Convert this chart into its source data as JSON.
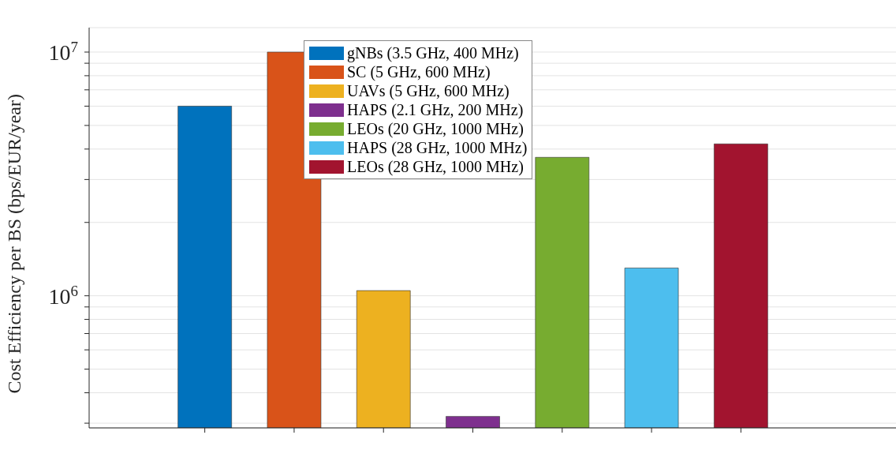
{
  "chart_data": {
    "type": "bar",
    "ylabel": "Cost Efficiency per BS (bps/EUR/year)",
    "categories": [
      null,
      null,
      null,
      null,
      null,
      null,
      null
    ],
    "series": [
      {
        "name": "gNBs (3.5 GHz, 400 MHz)",
        "color": "#0072bd",
        "values": [
          6000000,
          null,
          null,
          null,
          null,
          null,
          null
        ]
      },
      {
        "name": "SC (5 GHz, 600 MHz)",
        "color": "#d95319",
        "values": [
          null,
          10000000,
          null,
          null,
          null,
          null,
          null
        ]
      },
      {
        "name": "UAVs (5 GHz, 600 MHz)",
        "color": "#edb120",
        "values": [
          null,
          null,
          1050000,
          null,
          null,
          null,
          null
        ]
      },
      {
        "name": "HAPS (2.1 GHz, 200 MHz)",
        "color": "#7e2f8e",
        "values": [
          null,
          null,
          null,
          320000,
          null,
          null,
          null
        ]
      },
      {
        "name": "LEOs (20 GHz, 1000 MHz)",
        "color": "#77ac30",
        "values": [
          null,
          null,
          null,
          null,
          3700000,
          null,
          null
        ]
      },
      {
        "name": "HAPS (28 GHz, 1000 MHz)",
        "color": "#4dbeee",
        "values": [
          null,
          null,
          null,
          null,
          null,
          1300000,
          null
        ]
      },
      {
        "name": "LEOs (28 GHz, 1000 MHz)",
        "color": "#a2142f",
        "values": [
          null,
          null,
          null,
          null,
          null,
          null,
          4200000
        ]
      }
    ],
    "log": true,
    "ylim": [
      287000,
      12600000
    ],
    "yticks": [
      {
        "value": 300000,
        "label": null
      },
      {
        "value": 400000,
        "label": null
      },
      {
        "value": 500000,
        "label": null
      },
      {
        "value": 600000,
        "label": null
      },
      {
        "value": 700000,
        "label": null
      },
      {
        "value": 800000,
        "label": null
      },
      {
        "value": 900000,
        "label": null
      },
      {
        "value": 1000000,
        "label": "10$^{6}$"
      },
      {
        "value": 2000000,
        "label": null
      },
      {
        "value": 3000000,
        "label": null
      },
      {
        "value": 4000000,
        "label": null
      },
      {
        "value": 5000000,
        "label": null
      },
      {
        "value": 6000000,
        "label": null
      },
      {
        "value": 7000000,
        "label": null
      },
      {
        "value": 8000000,
        "label": null
      },
      {
        "value": 9000000,
        "label": null
      },
      {
        "value": 10000000,
        "label": "10$^{7}$"
      }
    ],
    "grid": "y",
    "legend": "top",
    "stacked": true
  }
}
